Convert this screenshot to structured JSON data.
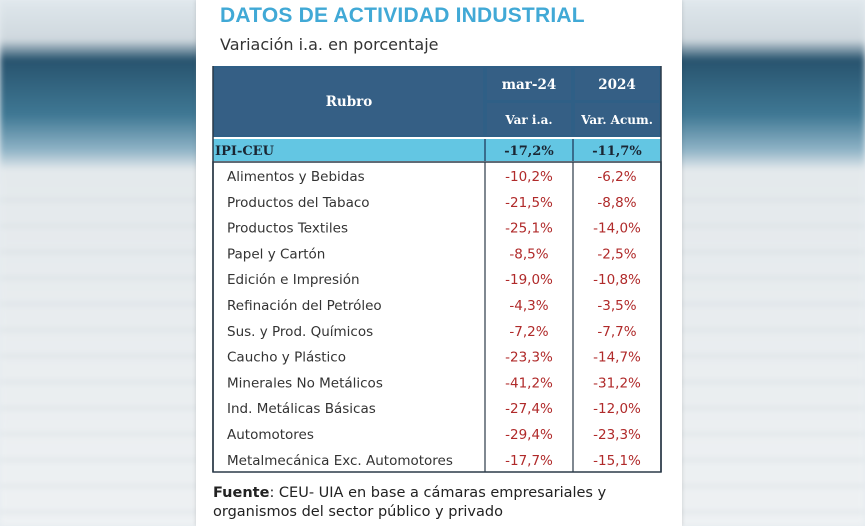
{
  "title": "DATOS DE ACTIVIDAD INDUSTRIAL",
  "subtitle": "Variación i.a. en porcentaje",
  "chart_data": {
    "type": "table",
    "header": {
      "rubro": "Rubro",
      "col1_top": "mar-24",
      "col1_sub": "Var i.a.",
      "col2_top": "2024",
      "col2_sub": "Var. Acum."
    },
    "highlight_row": {
      "name": "IPI-CEU",
      "var_ia": "-17,2%",
      "var_acum": "-11,7%"
    },
    "rows": [
      {
        "name": "Alimentos y Bebidas",
        "var_ia": "-10,2%",
        "var_acum": "-6,2%"
      },
      {
        "name": "Productos del Tabaco",
        "var_ia": "-21,5%",
        "var_acum": "-8,8%"
      },
      {
        "name": "Productos Textiles",
        "var_ia": "-25,1%",
        "var_acum": "-14,0%"
      },
      {
        "name": "Papel y Cartón",
        "var_ia": "-8,5%",
        "var_acum": "-2,5%"
      },
      {
        "name": "Edición e Impresión",
        "var_ia": "-19,0%",
        "var_acum": "-10,8%"
      },
      {
        "name": "Refinación del Petróleo",
        "var_ia": "-4,3%",
        "var_acum": "-3,5%"
      },
      {
        "name": "Sus. y Prod. Químicos",
        "var_ia": "-7,2%",
        "var_acum": "-7,7%"
      },
      {
        "name": "Caucho y Plástico",
        "var_ia": "-23,3%",
        "var_acum": "-14,7%"
      },
      {
        "name": "Minerales No Metálicos",
        "var_ia": "-41,2%",
        "var_acum": "-31,2%"
      },
      {
        "name": "Ind. Metálicas Básicas",
        "var_ia": "-27,4%",
        "var_acum": "-12,0%"
      },
      {
        "name": "Automotores",
        "var_ia": "-29,4%",
        "var_acum": "-23,3%"
      },
      {
        "name": "Metalmecánica Exc. Automotores",
        "var_ia": "-17,7%",
        "var_acum": "-15,1%"
      }
    ]
  },
  "footer": {
    "label": "Fuente",
    "text": ": CEU- UIA en base a cámaras empresariales y organismos del sector público y privado"
  },
  "colors": {
    "title": "#41a9d6",
    "header_bg": "#2f5f86",
    "highlight_bg": "#63c6e3",
    "negative_value": "#b02a2a"
  }
}
